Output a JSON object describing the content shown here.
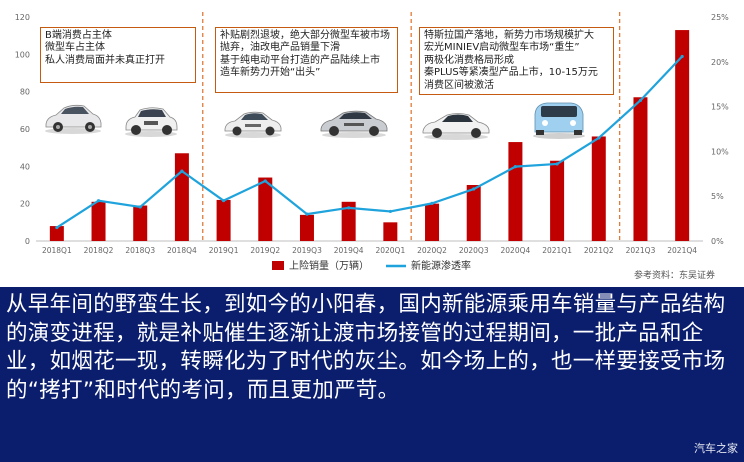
{
  "chart_data": {
    "type": "bar",
    "categories": [
      "2018Q1",
      "2018Q2",
      "2018Q3",
      "2018Q4",
      "2019Q1",
      "2019Q2",
      "2019Q3",
      "2019Q4",
      "2020Q1",
      "2020Q2",
      "2020Q3",
      "2020Q4",
      "2021Q1",
      "2021Q2",
      "2021Q3",
      "2021Q4"
    ],
    "series": [
      {
        "name": "上险销量（万辆）",
        "type": "bar",
        "axis": "left",
        "color": "#c00000",
        "values": [
          8,
          21,
          19,
          47,
          22,
          34,
          14,
          21,
          10,
          20,
          30,
          53,
          43,
          56,
          77,
          113
        ]
      },
      {
        "name": "新能源渗透率",
        "type": "line",
        "axis": "right",
        "color": "#1fa3dc",
        "values": [
          1.5,
          4.5,
          3.8,
          7.8,
          4.5,
          6.7,
          3.0,
          3.7,
          3.3,
          4.2,
          5.8,
          8.3,
          8.6,
          11.5,
          15.7,
          20.6
        ]
      }
    ],
    "y_left": {
      "min": 0,
      "max": 120,
      "ticks": [
        0,
        20,
        40,
        60,
        80,
        100,
        120
      ]
    },
    "y_right": {
      "min": 0,
      "max": 25,
      "ticks": [
        "0%",
        "5%",
        "10%",
        "15%",
        "20%",
        "25%"
      ]
    },
    "legend_position": "bottom-center",
    "source": "参考资料：东吴证券",
    "annotations": [
      {
        "lines": [
          "B端消费占主体",
          "微型车占主体",
          "私人消费局面并未真正打开"
        ]
      },
      {
        "lines": [
          "补贴剧烈退坡，绝大部分微型车被市场",
          "抛弃，油改电产品销量下滑",
          "基于纯电动平台打造的产品陆续上市",
          "造车新势力开始“出头”"
        ]
      },
      {
        "lines": [
          "特斯拉国产落地，新势力市场规模扩大",
          "宏光MINIEV启动微型车市场“重生”",
          "两极化消费格局形成",
          "秦PLUS等紧凑型产品上市，10-15万元",
          "消费区间被激活"
        ]
      }
    ]
  },
  "caption": "从早年间的野蛮生长，到如今的小阳春，国内新能源乘用车销量与产品结构的演变进程，就是补贴催生逐渐让渡市场接管的过程期间，一批产品和企业，如烟花一现，转瞬化为了时代的灰尘。如今场上的，也一样要接受市场的“拷打”和时代的考问，而且更加严苛。",
  "watermark": "汽车之家",
  "colors": {
    "bar": "#c00000",
    "line": "#1fa3dc",
    "divider": "#e07b39",
    "caption_bg": "#0b1e6e"
  },
  "car_images": [
    {
      "name": "white-suv-1",
      "color": "#e8e8ea"
    },
    {
      "name": "white-suv-2",
      "color": "#f0f0f0"
    },
    {
      "name": "white-sedan-1",
      "color": "#eeeeee"
    },
    {
      "name": "silver-sedan",
      "color": "#c9ccd0"
    },
    {
      "name": "white-sedan-2",
      "color": "#f2f2f2"
    },
    {
      "name": "tesla-model3",
      "color": "#f4f4f4"
    },
    {
      "name": "wuling-miniev",
      "color": "#9fd0ef"
    }
  ]
}
